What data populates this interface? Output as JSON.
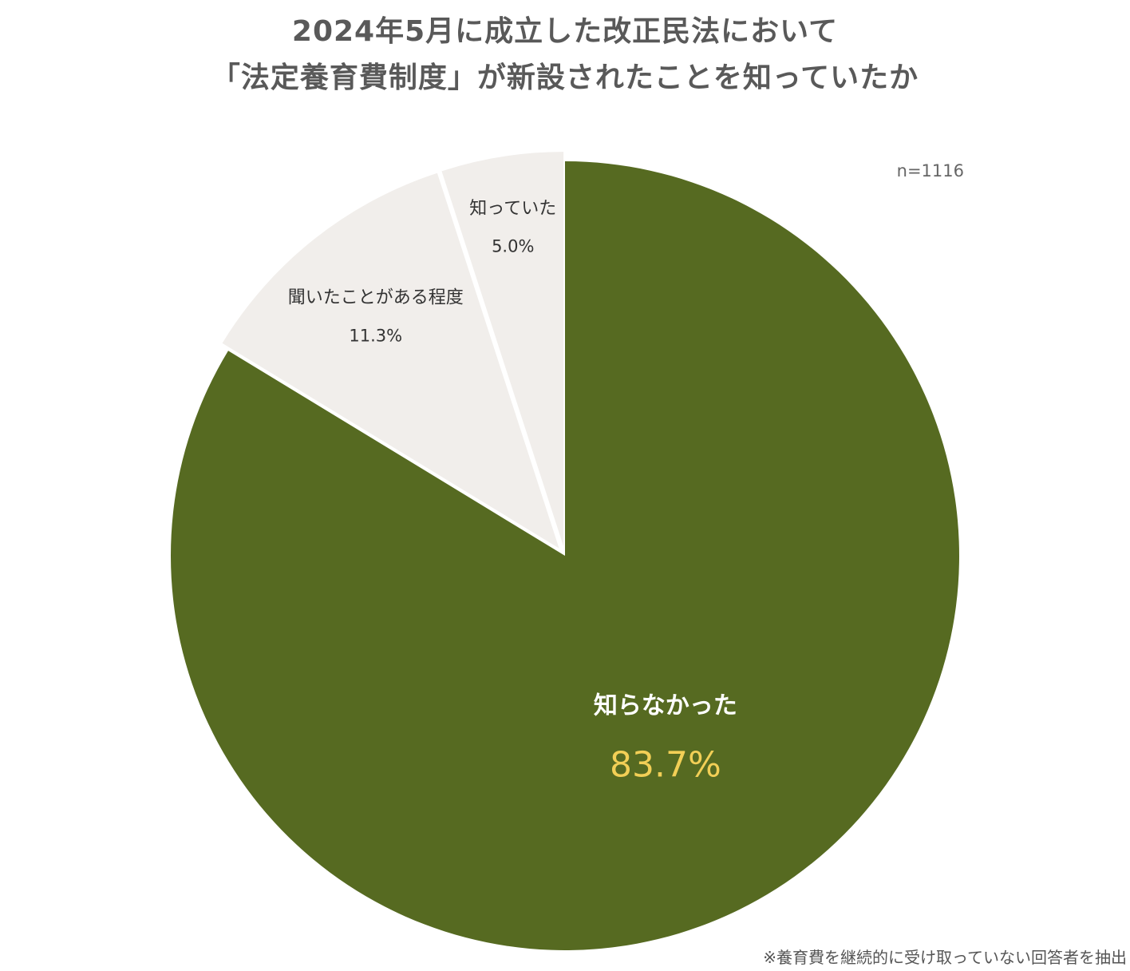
{
  "title_lines": [
    "2024年5月に成立した改正民法において",
    "「法定養育費制度」が新設されたことを知っていたか"
  ],
  "sample_size": "n=1116",
  "footnote": "※養育費を継続的に受け取っていない回答者を抽出",
  "colors": {
    "title": "#595959",
    "main_slice": "#566a21",
    "other_slice": "#f1eeeb",
    "main_value_label": "#f2cf56",
    "main_name_label": "#ffffff",
    "other_label": "#333333"
  },
  "chart_data": {
    "type": "pie",
    "start": "12 o'clock",
    "direction": "clockwise",
    "slices": [
      {
        "label": "知らなかった",
        "value": 83.7,
        "value_label": "83.7%",
        "color": "#566a21"
      },
      {
        "label": "聞いたことがある程度",
        "value": 11.3,
        "value_label": "11.3%",
        "color": "#f1eeeb"
      },
      {
        "label": "知っていた",
        "value": 5.0,
        "value_label": "5.0%",
        "color": "#f1eeeb"
      }
    ]
  }
}
